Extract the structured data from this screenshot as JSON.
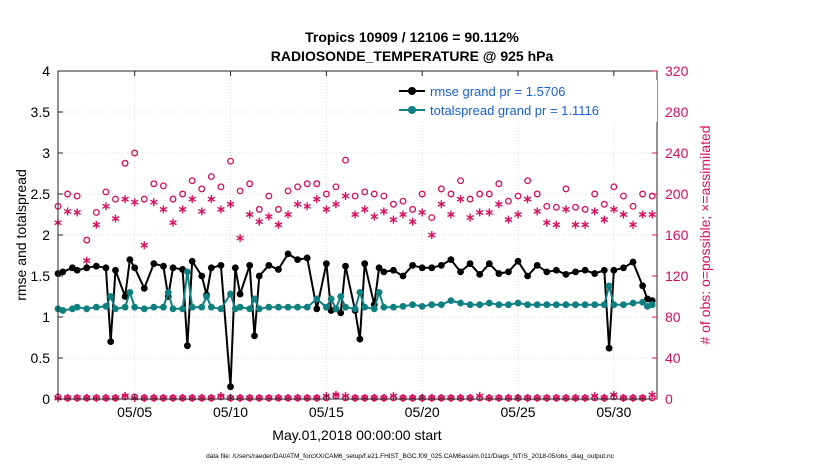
{
  "chart_data": {
    "type": "line",
    "title": "Tropics 10909 / 12106 = 90.112%",
    "subtitle": "RADIOSONDE_TEMPERATURE @ 925 hPa",
    "xlabel": "May.01,2018 00:00:00 start",
    "ylabel": "rmse and totalspread",
    "y2label": "# of obs: o=possible; ×=assimilated",
    "footer": "data file: /Users/raeder/DAI/ATM_forcXX/CAM6_setup/f.e21.FHIST_BGC.f09_025.CAM6assim.011/Diags_NTrS_2018-05/obs_diag_output.nc",
    "xlim": [
      1.0,
      32.25
    ],
    "ylim": [
      0,
      4
    ],
    "y2lim": [
      0,
      320
    ],
    "x_ticks": [
      5,
      10,
      15,
      20,
      25,
      30
    ],
    "x_tick_labels": [
      "05/05",
      "05/10",
      "05/15",
      "05/20",
      "05/25",
      "05/30"
    ],
    "y_ticks": [
      0,
      0.5,
      1,
      1.5,
      2,
      2.5,
      3,
      3.5,
      4
    ],
    "y_tick_labels": [
      "0",
      "0.5",
      "1",
      "1.5",
      "2",
      "2.5",
      "3",
      "3.5",
      "4"
    ],
    "y2_ticks": [
      0,
      40,
      80,
      120,
      160,
      200,
      240,
      280,
      320
    ],
    "y2_tick_labels": [
      "0",
      "40",
      "80",
      "120",
      "160",
      "200",
      "240",
      "280",
      "320"
    ],
    "grid": true,
    "legend_position": "top-right",
    "colors": {
      "rmse": "#000000",
      "spread": "#0f8080",
      "obs": "#d6105e",
      "legend_text": "#1a5fd6"
    },
    "series": [
      {
        "name": "rmse grand pr = 1.5706",
        "color": "#000000",
        "x": [
          1.0,
          1.25,
          1.75,
          2.0,
          2.5,
          3.0,
          3.5,
          3.75,
          4.0,
          4.5,
          4.75,
          5.0,
          5.5,
          6.0,
          6.5,
          6.75,
          7.0,
          7.5,
          7.75,
          8.0,
          8.5,
          8.75,
          9.0,
          9.5,
          10.0,
          10.25,
          10.5,
          11.0,
          11.25,
          11.5,
          12.0,
          12.5,
          13.0,
          13.5,
          14.0,
          14.5,
          15.0,
          15.25,
          15.5,
          15.75,
          16.0,
          16.5,
          16.75,
          17.0,
          17.5,
          17.75,
          18.0,
          18.5,
          19.0,
          19.5,
          20.0,
          20.5,
          21.0,
          21.5,
          22.0,
          22.5,
          23.0,
          23.5,
          24.0,
          24.5,
          25.0,
          25.5,
          26.0,
          26.5,
          27.0,
          27.5,
          28.0,
          28.5,
          29.0,
          29.5,
          29.75,
          30.0,
          30.5,
          31.0,
          31.5,
          31.75,
          32.0
        ],
        "y": [
          1.53,
          1.55,
          1.6,
          1.57,
          1.6,
          1.62,
          1.6,
          0.7,
          1.57,
          1.25,
          1.7,
          1.6,
          1.35,
          1.65,
          1.62,
          1.25,
          1.6,
          1.58,
          0.65,
          1.68,
          1.5,
          1.27,
          1.6,
          1.63,
          0.15,
          1.6,
          1.28,
          1.63,
          0.77,
          1.5,
          1.63,
          1.58,
          1.77,
          1.7,
          1.72,
          1.1,
          1.65,
          1.08,
          1.1,
          1.05,
          1.62,
          1.08,
          0.73,
          1.65,
          1.15,
          1.6,
          1.55,
          1.57,
          1.5,
          1.63,
          1.6,
          1.6,
          1.63,
          1.7,
          1.55,
          1.65,
          1.52,
          1.65,
          1.53,
          1.55,
          1.68,
          1.5,
          1.63,
          1.55,
          1.57,
          1.52,
          1.55,
          1.57,
          1.53,
          1.57,
          0.62,
          1.57,
          1.6,
          1.67,
          1.38,
          1.22,
          1.2
        ],
        "marker": "filled-circle"
      },
      {
        "name": "totalspread grand pr = 1.1116",
        "color": "#0f8080",
        "x": [
          1.0,
          1.25,
          1.75,
          2.0,
          2.5,
          3.0,
          3.5,
          3.75,
          4.0,
          4.5,
          4.75,
          5.0,
          5.5,
          6.0,
          6.5,
          6.75,
          7.0,
          7.5,
          7.75,
          8.0,
          8.5,
          8.75,
          9.0,
          9.5,
          10.0,
          10.25,
          10.5,
          11.0,
          11.25,
          11.5,
          12.0,
          12.5,
          13.0,
          13.5,
          14.0,
          14.5,
          15.0,
          15.25,
          15.5,
          15.75,
          16.0,
          16.5,
          16.75,
          17.0,
          17.5,
          17.75,
          18.0,
          18.5,
          19.0,
          19.5,
          20.0,
          20.5,
          21.0,
          21.5,
          22.0,
          22.5,
          23.0,
          23.5,
          24.0,
          24.5,
          25.0,
          25.5,
          26.0,
          26.5,
          27.0,
          27.5,
          28.0,
          28.5,
          29.0,
          29.5,
          29.75,
          30.0,
          30.5,
          31.0,
          31.5,
          31.75,
          32.0
        ],
        "y": [
          1.1,
          1.08,
          1.1,
          1.12,
          1.1,
          1.12,
          1.13,
          1.25,
          1.1,
          1.12,
          1.3,
          1.12,
          1.1,
          1.12,
          1.12,
          1.3,
          1.1,
          1.1,
          1.55,
          1.12,
          1.12,
          1.25,
          1.12,
          1.1,
          1.28,
          1.1,
          1.12,
          1.1,
          1.22,
          1.1,
          1.12,
          1.12,
          1.12,
          1.12,
          1.12,
          1.22,
          1.12,
          1.22,
          1.1,
          1.25,
          1.12,
          1.1,
          1.3,
          1.12,
          1.1,
          1.3,
          1.12,
          1.12,
          1.13,
          1.15,
          1.13,
          1.15,
          1.15,
          1.2,
          1.17,
          1.15,
          1.15,
          1.17,
          1.15,
          1.15,
          1.17,
          1.15,
          1.15,
          1.15,
          1.15,
          1.15,
          1.15,
          1.15,
          1.15,
          1.15,
          1.38,
          1.15,
          1.15,
          1.17,
          1.18,
          1.13,
          1.15
        ],
        "marker": "filled-circle"
      }
    ],
    "obs_possible": {
      "x": [
        1.0,
        1.5,
        2.0,
        2.5,
        3.0,
        3.5,
        4.0,
        4.5,
        5.0,
        5.5,
        6.0,
        6.5,
        7.0,
        7.5,
        8.0,
        8.5,
        9.0,
        9.5,
        10.0,
        10.5,
        11.0,
        11.5,
        12.0,
        12.5,
        13.0,
        13.5,
        14.0,
        14.5,
        15.0,
        15.5,
        16.0,
        16.5,
        17.0,
        17.5,
        18.0,
        18.5,
        19.0,
        19.5,
        20.0,
        20.5,
        21.0,
        21.5,
        22.0,
        22.5,
        23.0,
        23.5,
        24.0,
        24.5,
        25.0,
        25.5,
        26.0,
        26.5,
        27.0,
        27.5,
        28.0,
        28.5,
        29.0,
        29.5,
        30.0,
        30.5,
        31.0,
        31.5,
        32.0
      ],
      "y": [
        188,
        200,
        198,
        155,
        182,
        202,
        195,
        230,
        240,
        195,
        210,
        208,
        195,
        200,
        213,
        205,
        217,
        207,
        232,
        203,
        210,
        185,
        198,
        185,
        203,
        207,
        210,
        210,
        200,
        207,
        233,
        198,
        202,
        200,
        198,
        190,
        193,
        185,
        200,
        177,
        205,
        200,
        213,
        195,
        200,
        200,
        210,
        193,
        198,
        213,
        200,
        188,
        187,
        205,
        187,
        185,
        200,
        190,
        207,
        198,
        188,
        200,
        198
      ]
    },
    "obs_assimilated": {
      "x": [
        1.0,
        1.5,
        2.0,
        2.5,
        3.0,
        3.5,
        4.0,
        4.5,
        5.0,
        5.5,
        6.0,
        6.5,
        7.0,
        7.5,
        8.0,
        8.5,
        9.0,
        9.5,
        10.0,
        10.5,
        11.0,
        11.5,
        12.0,
        12.5,
        13.0,
        13.5,
        14.0,
        14.5,
        15.0,
        15.5,
        16.0,
        16.5,
        17.0,
        17.5,
        18.0,
        18.5,
        19.0,
        19.5,
        20.0,
        20.5,
        21.0,
        21.5,
        22.0,
        22.5,
        23.0,
        23.5,
        24.0,
        24.5,
        25.0,
        25.5,
        26.0,
        26.5,
        27.0,
        27.5,
        28.0,
        28.5,
        29.0,
        29.5,
        30.0,
        30.5,
        31.0,
        31.5,
        32.0
      ],
      "y": [
        172,
        183,
        182,
        135,
        170,
        188,
        176,
        195,
        192,
        150,
        192,
        185,
        172,
        185,
        195,
        183,
        195,
        185,
        190,
        157,
        180,
        173,
        178,
        170,
        180,
        190,
        188,
        195,
        185,
        190,
        198,
        180,
        185,
        178,
        183,
        175,
        180,
        173,
        182,
        160,
        190,
        180,
        195,
        177,
        182,
        182,
        190,
        175,
        180,
        195,
        183,
        172,
        170,
        185,
        170,
        170,
        183,
        175,
        185,
        180,
        170,
        180,
        180
      ]
    },
    "obs_low_possible": [
      2,
      1,
      1,
      1,
      1,
      1,
      1,
      2,
      2,
      1,
      1,
      1,
      1,
      1,
      1,
      1,
      1,
      2,
      1,
      1,
      1,
      1,
      1,
      1,
      1,
      1,
      1,
      1,
      1,
      3,
      1,
      1,
      1,
      1,
      1,
      1,
      1,
      1,
      1,
      1,
      1,
      1,
      1,
      1,
      1,
      1,
      1,
      1,
      1,
      1,
      1,
      1,
      1,
      1,
      1,
      1,
      1,
      1,
      2,
      1,
      1,
      1,
      1
    ],
    "obs_low_assimilated": [
      1,
      1,
      1,
      1,
      1,
      1,
      1,
      3,
      1,
      1,
      1,
      1,
      1,
      1,
      1,
      1,
      1,
      3,
      1,
      1,
      1,
      1,
      1,
      1,
      1,
      1,
      1,
      1,
      3,
      4,
      3,
      1,
      1,
      1,
      1,
      3,
      1,
      1,
      1,
      1,
      1,
      1,
      1,
      1,
      3,
      1,
      1,
      1,
      1,
      1,
      1,
      1,
      1,
      1,
      1,
      1,
      3,
      1,
      4,
      1,
      1,
      1,
      4
    ]
  }
}
